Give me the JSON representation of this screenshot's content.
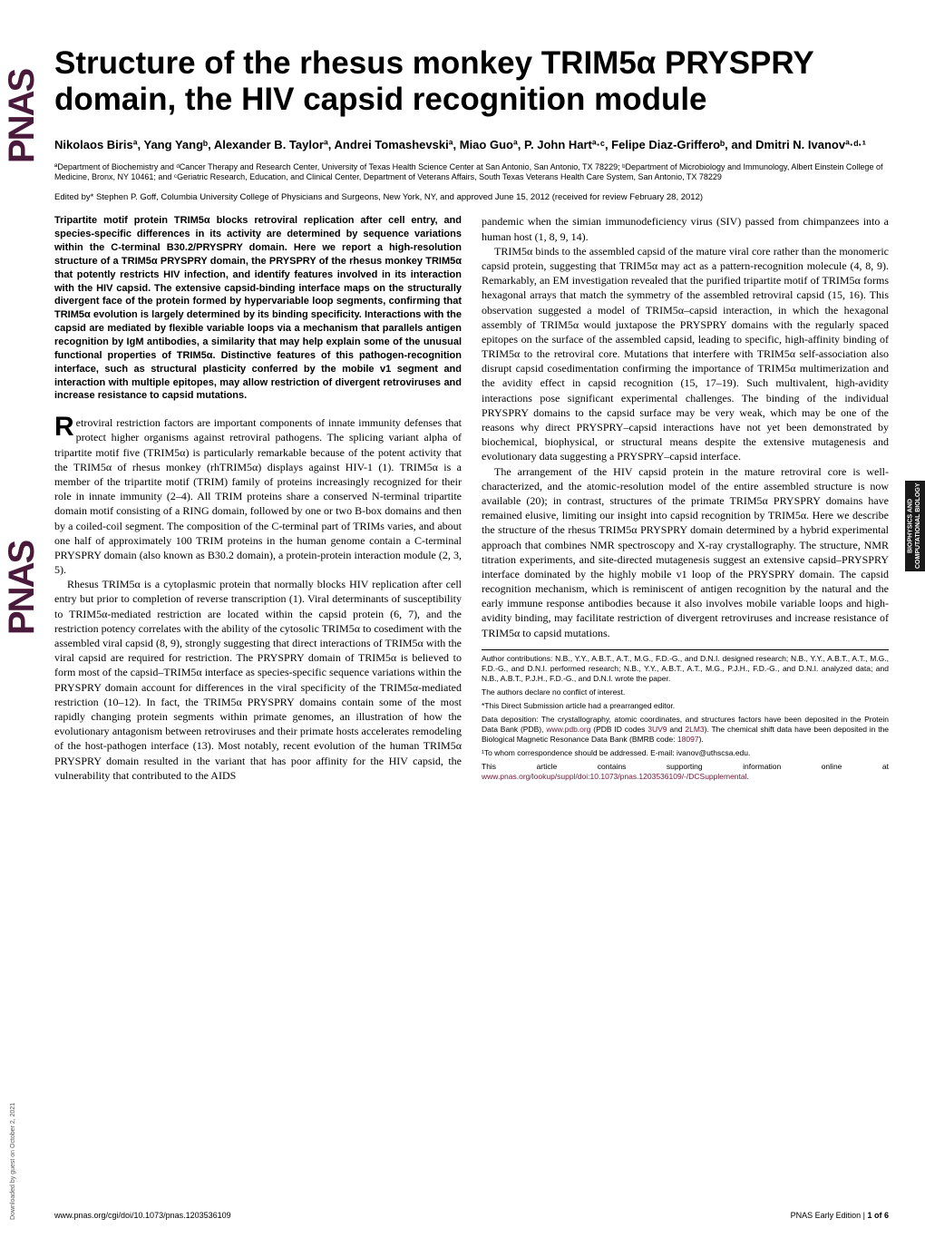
{
  "title": "Structure of the rhesus monkey TRIM5α PRYSPRY domain, the HIV capsid recognition module",
  "authors": "Nikolaos Birisª, Yang Yangᵇ, Alexander B. Taylorª, Andrei Tomashevskiª, Miao Guoª, P. John Hartª·ᶜ, Felipe Diaz-Grifferoᵇ, and Dmitri N. Ivanovª·ᵈ·¹",
  "affiliations": "ªDepartment of Biochemistry and ᵈCancer Therapy and Research Center, University of Texas Health Science Center at San Antonio, San Antonio, TX 78229; ᵇDepartment of Microbiology and Immunology, Albert Einstein College of Medicine, Bronx, NY 10461; and ᶜGeriatric Research, Education, and Clinical Center, Department of Veterans Affairs, South Texas Veterans Health Care System, San Antonio, TX 78229",
  "edited_by": "Edited by* Stephen P. Goff, Columbia University College of Physicians and Surgeons, New York, NY, and approved June 15, 2012 (received for review February 28, 2012)",
  "abstract": "Tripartite motif protein TRIM5α blocks retroviral replication after cell entry, and species-specific differences in its activity are determined by sequence variations within the C-terminal B30.2/PRYSPRY domain. Here we report a high-resolution structure of a TRIM5α PRYSPRY domain, the PRYSPRY of the rhesus monkey TRIM5α that potently restricts HIV infection, and identify features involved in its interaction with the HIV capsid. The extensive capsid-binding interface maps on the structurally divergent face of the protein formed by hypervariable loop segments, confirming that TRIM5α evolution is largely determined by its binding specificity. Interactions with the capsid are mediated by flexible variable loops via a mechanism that parallels antigen recognition by IgM antibodies, a similarity that may help explain some of the unusual functional properties of TRIM5α. Distinctive features of this pathogen-recognition interface, such as structural plasticity conferred by the mobile v1 segment and interaction with multiple epitopes, may allow restriction of divergent retroviruses and increase resistance to capsid mutations.",
  "body_p1_drop": "R",
  "body_p1": "etroviral restriction factors are important components of innate immunity defenses that protect higher organisms against retroviral pathogens. The splicing variant alpha of tripartite motif five (TRIM5α) is particularly remarkable because of the potent activity that the TRIM5α of rhesus monkey (rhTRIM5α) displays against HIV-1 (1). TRIM5α is a member of the tripartite motif (TRIM) family of proteins increasingly recognized for their role in innate immunity (2–4). All TRIM proteins share a conserved N-terminal tripartite domain motif consisting of a RING domain, followed by one or two B-box domains and then by a coiled-coil segment. The composition of the C-terminal part of TRIMs varies, and about one half of approximately 100 TRIM proteins in the human genome contain a C-terminal PRYSPRY domain (also known as B30.2 domain), a protein-protein interaction module (2, 3, 5).",
  "body_p2": "Rhesus TRIM5α is a cytoplasmic protein that normally blocks HIV replication after cell entry but prior to completion of reverse transcription (1). Viral determinants of susceptibility to TRIM5α-mediated restriction are located within the capsid protein (6, 7), and the restriction potency correlates with the ability of the cytosolic TRIM5α to cosediment with the assembled viral capsid (8, 9), strongly suggesting that direct interactions of TRIM5α with the viral capsid are required for restriction. The PRYSPRY domain of TRIM5α is believed to form most of the capsid–TRIM5α interface as species-specific sequence variations within the PRYSPRY domain account for differences in the viral specificity of the TRIM5α-mediated restriction (10–12). In fact, the TRIM5α PRYSPRY domains contain some of the most rapidly changing protein segments within primate genomes, an illustration of how the evolutionary antagonism between retroviruses and their primate hosts accelerates remodeling of the host-pathogen interface (13). Most notably, recent evolution of the human TRIM5α PRYSPRY domain resulted in the variant that has poor affinity for the HIV capsid, the vulnerability that contributed to the AIDS",
  "body_p3": "pandemic when the simian immunodeficiency virus (SIV) passed from chimpanzees into a human host (1, 8, 9, 14).",
  "body_p4": "TRIM5α binds to the assembled capsid of the mature viral core rather than the monomeric capsid protein, suggesting that TRIM5α may act as a pattern-recognition molecule (4, 8, 9). Remarkably, an EM investigation revealed that the purified tripartite motif of TRIM5α forms hexagonal arrays that match the symmetry of the assembled retroviral capsid (15, 16). This observation suggested a model of TRIM5α–capsid interaction, in which the hexagonal assembly of TRIM5α would juxtapose the PRYSPRY domains with the regularly spaced epitopes on the surface of the assembled capsid, leading to specific, high-affinity binding of TRIM5α to the retroviral core. Mutations that interfere with TRIM5α self-association also disrupt capsid cosedimentation confirming the importance of TRIM5α multimerization and the avidity effect in capsid recognition (15, 17–19). Such multivalent, high-avidity interactions pose significant experimental challenges. The binding of the individual PRYSPRY domains to the capsid surface may be very weak, which may be one of the reasons why direct PRYSPRY–capsid interactions have not yet been demonstrated by biochemical, biophysical, or structural means despite the extensive mutagenesis and evolutionary data suggesting a PRYSPRY–capsid interface.",
  "body_p5": "The arrangement of the HIV capsid protein in the mature retroviral core is well-characterized, and the atomic-resolution model of the entire assembled structure is now available (20); in contrast, structures of the primate TRIM5α PRYSPRY domains have remained elusive, limiting our insight into capsid recognition by TRIM5α. Here we describe the structure of the rhesus TRIM5α PRYSPRY domain determined by a hybrid experimental approach that combines NMR spectroscopy and X-ray crystallography. The structure, NMR titration experiments, and site-directed mutagenesis suggest an extensive capsid–PRYSPRY interface dominated by the highly mobile v1 loop of the PRYSPRY domain. The capsid recognition mechanism, which is reminiscent of antigen recognition by the natural and the early immune response antibodies because it also involves mobile variable loops and high-avidity binding, may facilitate restriction of divergent retroviruses and increase resistance of TRIM5α to capsid mutations.",
  "fn_contrib": "Author contributions: N.B., Y.Y., A.B.T., A.T., M.G., F.D.-G., and D.N.I. designed research; N.B., Y.Y., A.B.T., A.T., M.G., F.D.-G., and D.N.I. performed research; N.B., Y.Y., A.B.T., A.T., M.G., P.J.H., F.D.-G., and D.N.I. analyzed data; and N.B., A.B.T., P.J.H., F.D.-G., and D.N.I. wrote the paper.",
  "fn_conflict": "The authors declare no conflict of interest.",
  "fn_editor": "*This Direct Submission article had a prearranged editor.",
  "fn_data_pre": "Data deposition: The crystallography, atomic coordinates, and structures factors have been deposited in the Protein Data Bank (PDB), ",
  "fn_data_link1": "www.pdb.org",
  "fn_data_mid1": " (PDB ID codes ",
  "fn_data_link2": "3UV9",
  "fn_data_mid2": " and ",
  "fn_data_link3": "2LM3",
  "fn_data_post1": "). The chemical shift data have been deposited in the Biological Magnetic Resonance Data Bank (BMRB code: ",
  "fn_data_link4": "18097",
  "fn_data_post2": ").",
  "fn_corresp": "¹To whom correspondence should be addressed. E-mail: ivanov@uthscsa.edu.",
  "fn_supp_pre": "This article contains supporting information online at ",
  "fn_supp_link": "www.pnas.org/lookup/suppl/doi:10.1073/pnas.1203536109/-/DCSupplemental",
  "fn_supp_post": ".",
  "footer_left": "www.pnas.org/cgi/doi/10.1073/pnas.1203536109",
  "footer_right_pre": "PNAS Early Edition | ",
  "footer_right_bold": "1 of 6",
  "side_tab": "BIOPHYSICS AND COMPUTATIONAL BIOLOGY",
  "pnas_logo": "PNAS",
  "download_note": "Downloaded by guest on October 2, 2021"
}
